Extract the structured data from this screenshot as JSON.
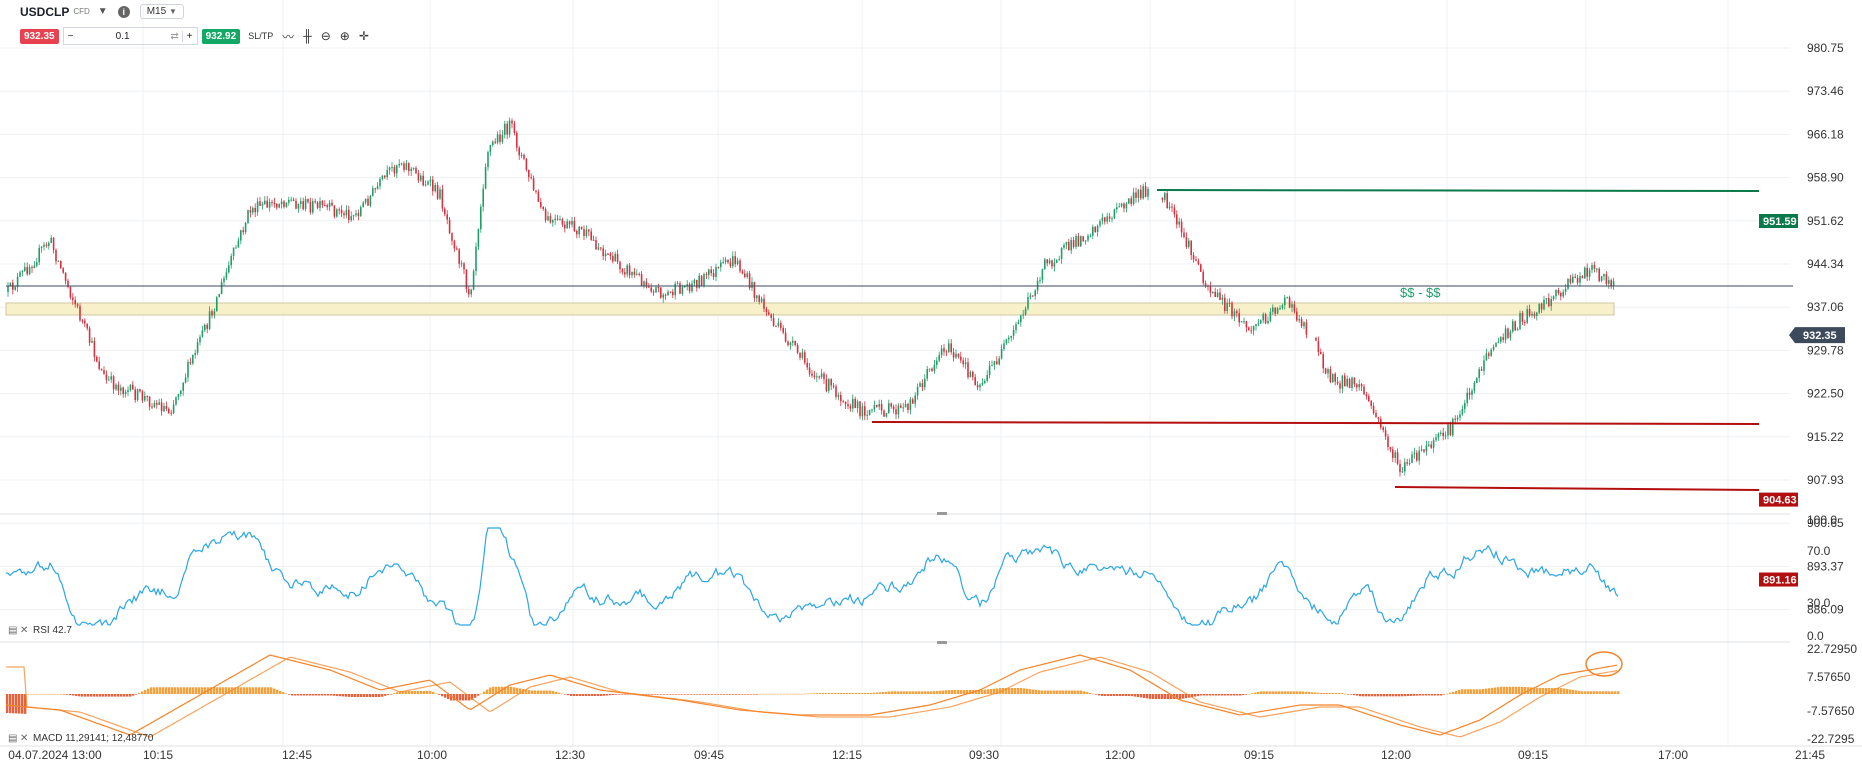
{
  "header": {
    "symbol": "USDCLP",
    "symbol_type": "CFD",
    "timeframe": "M15",
    "sell_price": "932.35",
    "lot_size": "0.1",
    "buy_price": "932.92",
    "sltp_label": "SL/TP",
    "minus": "−",
    "plus": "+"
  },
  "price_axis": {
    "ticks": [
      "980.75",
      "973.46",
      "966.18",
      "958.90",
      "951.62",
      "944.34",
      "937.06",
      "929.78",
      "922.50",
      "915.22",
      "907.93",
      "900.65",
      "893.37",
      "886.09"
    ],
    "min": 886.09,
    "max": 980.75
  },
  "price_tags": [
    {
      "label": "951.59",
      "value": 951.59,
      "color": "#0a7a4c"
    },
    {
      "label": "932.35",
      "value": 932.35,
      "color": "#3d4a5c"
    },
    {
      "label": "904.63",
      "value": 904.63,
      "color": "#b30f0f"
    },
    {
      "label": "891.16",
      "value": 891.16,
      "color": "#b30f0f"
    }
  ],
  "zone_label": "$$ - $$",
  "rsi": {
    "label": "RSI 42.7",
    "ticks": [
      "100.0",
      "70.0",
      "30.0",
      "0.0"
    ],
    "value": 42.7
  },
  "macd": {
    "label": "MACD 11,29141; 12,48770",
    "ticks": [
      "22.72950",
      "7.57650",
      "-7.57650",
      "-22.7295"
    ]
  },
  "time_axis": {
    "labels": [
      "04.07.2024 13:00",
      "10:15",
      "12:45",
      "10:00",
      "12:30",
      "09:45",
      "12:15",
      "09:30",
      "12:00",
      "09:15",
      "12:00",
      "09:15",
      "17:00",
      "21:45"
    ]
  },
  "colors": {
    "up": "#1f9e6a",
    "down": "#d9303f",
    "rsi_line": "#2aa6e8",
    "macd_line": "#f5842a",
    "macd_hist": "#f5a03a",
    "zone": "#f7f0c8",
    "grid": "#eef0f3"
  },
  "icons": [
    "chevron-down-icon",
    "info-icon",
    "swap-icon",
    "line-chart-icon",
    "candles-icon",
    "zoom-out-icon",
    "zoom-in-icon",
    "crosshair-icon",
    "settings-icon",
    "close-icon"
  ]
}
